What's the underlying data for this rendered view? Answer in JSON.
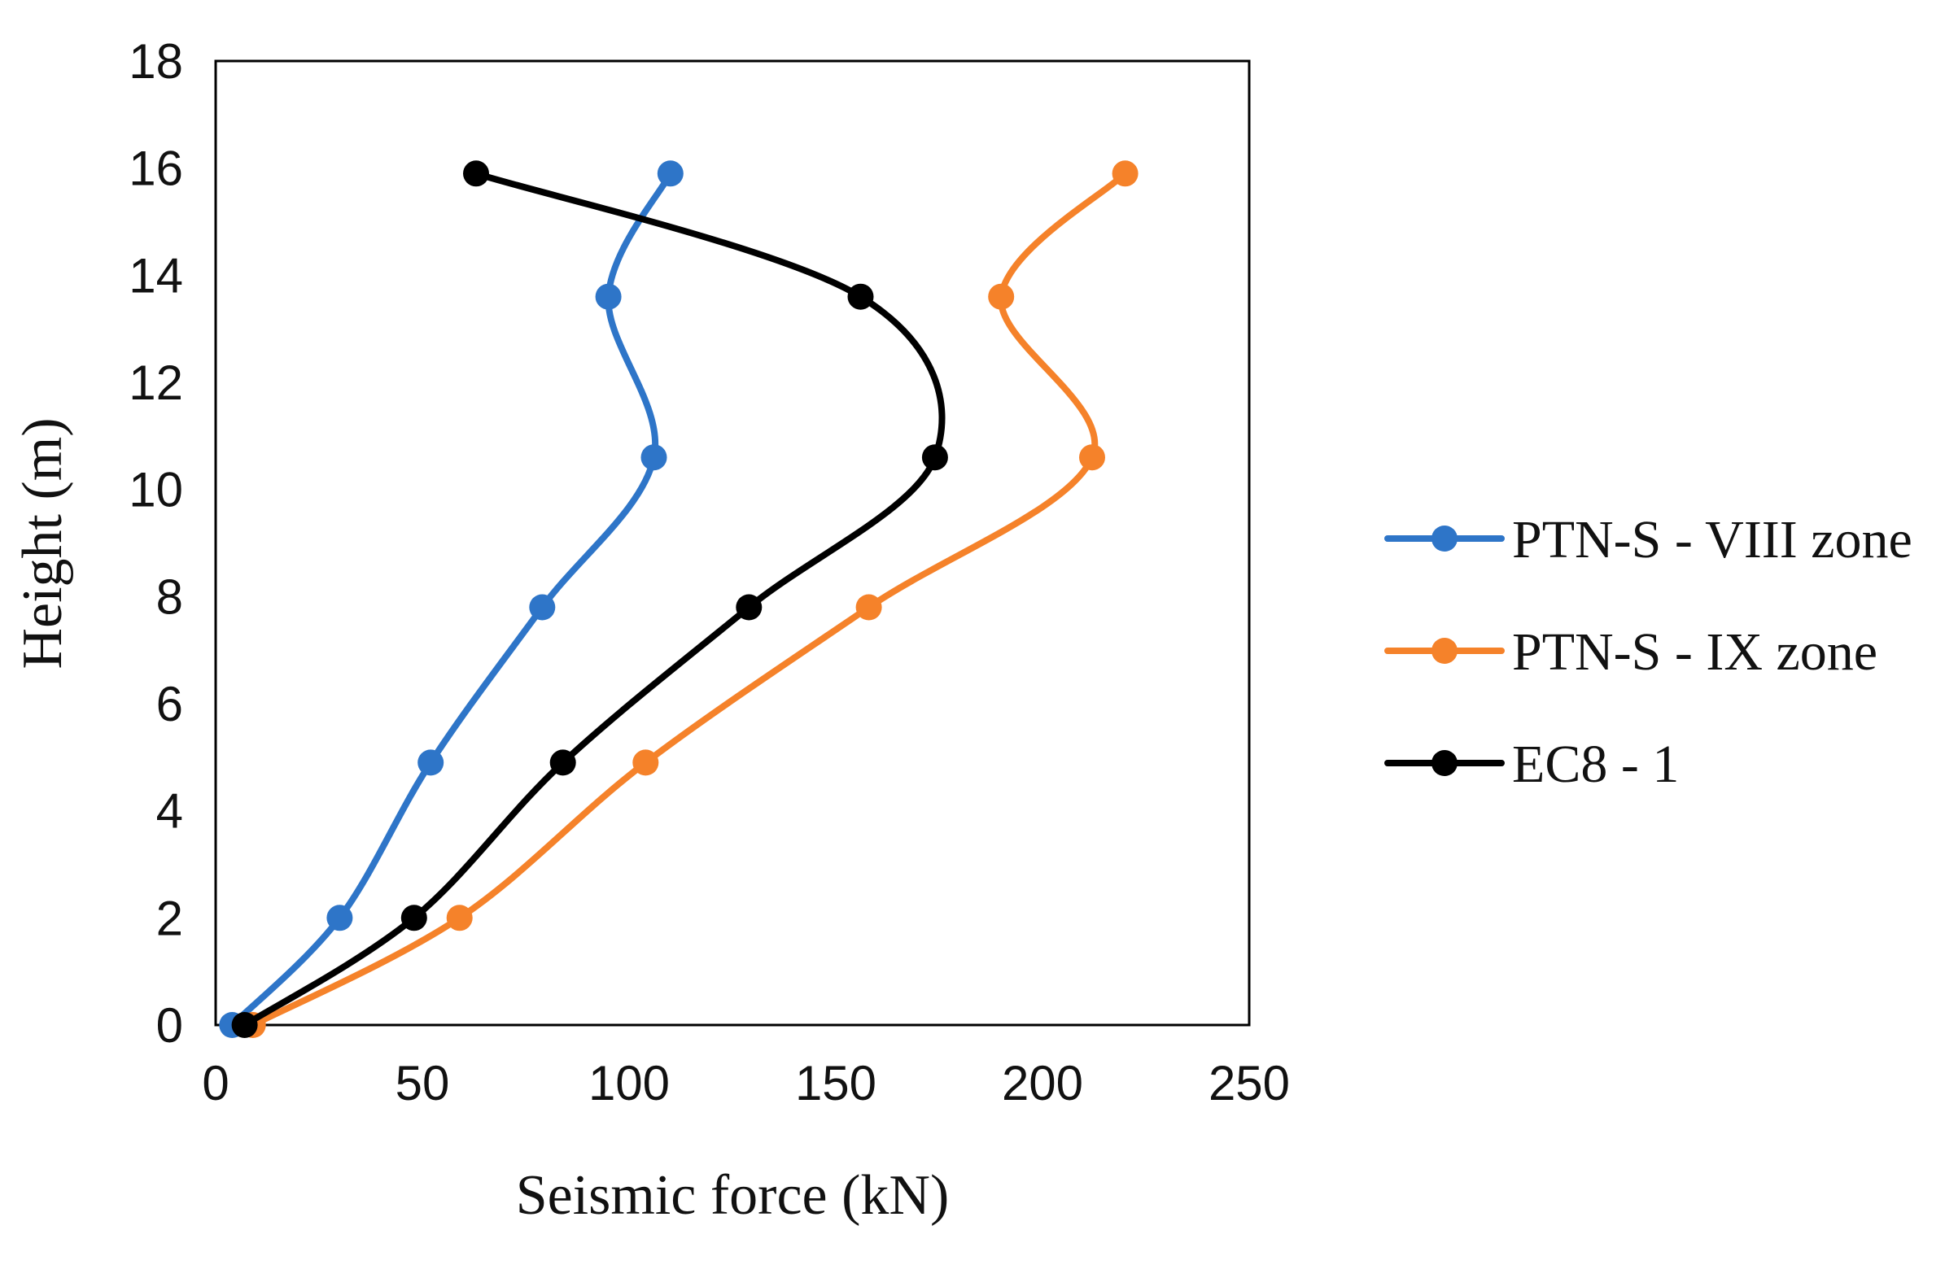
{
  "chart_data": {
    "type": "line",
    "title": "",
    "xlabel": "Seismic force (kN)",
    "ylabel": "Height (m)",
    "xlim": [
      0,
      250
    ],
    "ylim": [
      0,
      18
    ],
    "xticks": [
      "0",
      "50",
      "100",
      "150",
      "200",
      "250"
    ],
    "yticks": [
      "0",
      "2",
      "4",
      "6",
      "8",
      "10",
      "12",
      "14",
      "16",
      "18"
    ],
    "grid": false,
    "legend_position": "right",
    "smooth": true,
    "series": [
      {
        "name": "PTN-S - VIII zone",
        "color": "#2E75C8",
        "x": [
          4,
          30,
          52,
          79,
          106,
          95,
          110
        ],
        "y": [
          0,
          2,
          4.9,
          7.8,
          10.6,
          13.6,
          15.9
        ]
      },
      {
        "name": "PTN-S - IX zone",
        "color": "#F5822A",
        "x": [
          9,
          59,
          104,
          158,
          212,
          190,
          220
        ],
        "y": [
          0,
          2,
          4.9,
          7.8,
          10.6,
          13.6,
          15.9
        ]
      },
      {
        "name": "EC8 - 1",
        "color": "#000000",
        "x": [
          7,
          48,
          84,
          129,
          174,
          156,
          63
        ],
        "y": [
          0,
          2,
          4.9,
          7.8,
          10.6,
          13.6,
          15.9
        ]
      }
    ]
  }
}
